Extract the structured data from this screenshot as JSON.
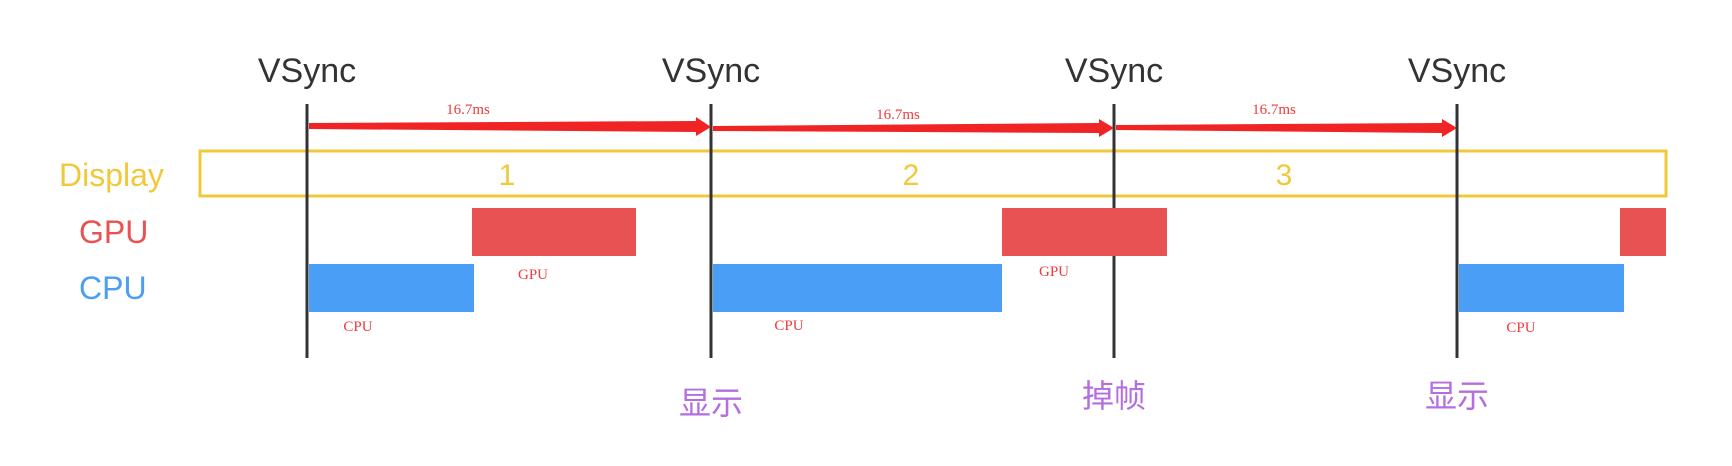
{
  "vsync_label": "VSync",
  "interval_label": "16.7ms",
  "rows": {
    "display": "Display",
    "gpu": "GPU",
    "cpu": "CPU"
  },
  "frames": [
    "1",
    "2",
    "3"
  ],
  "bar_labels": {
    "gpu": "GPU",
    "cpu": "CPU"
  },
  "events": [
    "显示",
    "掉帧",
    "显示"
  ],
  "colors": {
    "display": "#f0c93a",
    "gpu": "#e85252",
    "cpu": "#4a9ef5",
    "arrow": "#f02424",
    "event": "#b46ee0",
    "vsync_line": "#333333"
  }
}
